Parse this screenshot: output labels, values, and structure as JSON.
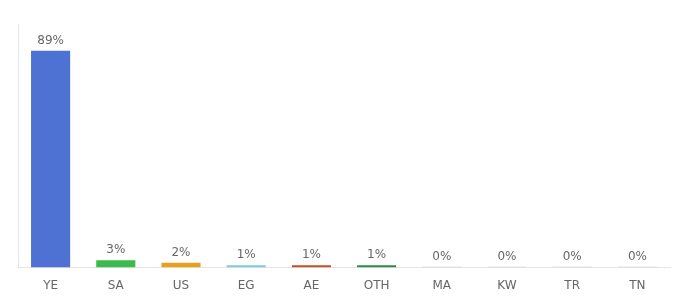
{
  "chart_data": {
    "type": "bar",
    "categories": [
      "YE",
      "SA",
      "US",
      "EG",
      "AE",
      "OTH",
      "MA",
      "KW",
      "TR",
      "TN"
    ],
    "values": [
      89,
      3,
      2,
      1,
      1,
      1,
      0.3,
      0.3,
      0.3,
      0.3
    ],
    "value_labels": [
      "89%",
      "3%",
      "2%",
      "1%",
      "1%",
      "1%",
      "0%",
      "0%",
      "0%",
      "0%"
    ],
    "data_labels": true,
    "colors": [
      "#4d72d4",
      "#3dba4e",
      "#e8a020",
      "#7ec8e3",
      "#c0522a",
      "#2e8b4e",
      "#cccccc",
      "#cccccc",
      "#cccccc",
      "#cccccc"
    ],
    "ylim": [
      0,
      100
    ],
    "grid": false,
    "tick_labels": "x"
  }
}
